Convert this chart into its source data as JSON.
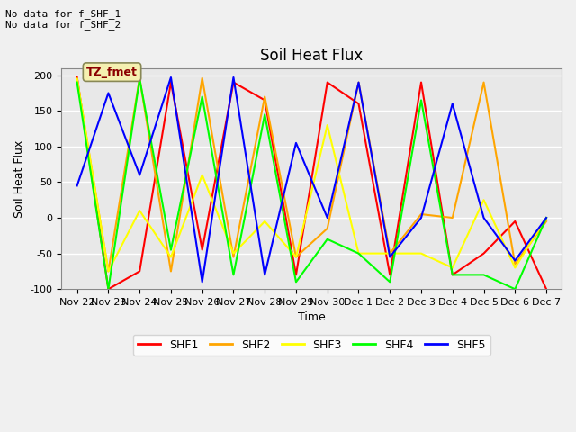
{
  "title": "Soil Heat Flux",
  "xlabel": "Time",
  "ylabel": "Soil Heat Flux",
  "text_top_left": "No data for f_SHF_1\nNo data for f_SHF_2",
  "annotation_box": "TZ_fmet",
  "ylim": [
    -100,
    210
  ],
  "yticks": [
    -100,
    -50,
    0,
    50,
    100,
    150,
    200
  ],
  "xtick_labels": [
    "Nov 22",
    "Nov 23",
    "Nov 24",
    "Nov 25",
    "Nov 26",
    "Nov 27",
    "Nov 28",
    "Nov 29",
    "Nov 30",
    "Dec 1",
    "Dec 2",
    "Dec 3",
    "Dec 4",
    "Dec 5",
    "Dec 6",
    "Dec 7"
  ],
  "series": {
    "SHF1": {
      "color": "red",
      "x": [
        0,
        1,
        2,
        3,
        4,
        5,
        6,
        7,
        8,
        9,
        10,
        11,
        12,
        13,
        14,
        15
      ],
      "y": [
        197,
        -100,
        -75,
        190,
        -45,
        190,
        165,
        -80,
        190,
        160,
        -80,
        190,
        -80,
        -50,
        -5,
        -100
      ]
    },
    "SHF2": {
      "color": "orange",
      "x": [
        0,
        1,
        2,
        3,
        4,
        5,
        6,
        7,
        8,
        9,
        10,
        11,
        12,
        13,
        14,
        15
      ],
      "y": [
        195,
        -75,
        196,
        -75,
        196,
        -55,
        170,
        -55,
        -15,
        190,
        -50,
        5,
        0,
        190,
        -65,
        -5
      ]
    },
    "SHF3": {
      "color": "yellow",
      "x": [
        0,
        1,
        2,
        3,
        4,
        5,
        6,
        7,
        8,
        9,
        10,
        11,
        12,
        13,
        14,
        15
      ],
      "y": [
        195,
        -75,
        10,
        -55,
        60,
        -50,
        -5,
        -55,
        130,
        -50,
        -50,
        -50,
        -70,
        25,
        -70,
        0
      ]
    },
    "SHF4": {
      "color": "lime",
      "x": [
        0,
        1,
        2,
        3,
        4,
        5,
        6,
        7,
        8,
        9,
        10,
        11,
        12,
        13,
        14,
        15
      ],
      "y": [
        190,
        -100,
        195,
        -45,
        170,
        -80,
        145,
        -90,
        -30,
        -50,
        -90,
        165,
        -80,
        -80,
        -100,
        0
      ]
    },
    "SHF5": {
      "color": "blue",
      "x": [
        0,
        1,
        2,
        3,
        4,
        5,
        6,
        7,
        8,
        9,
        10,
        11,
        12,
        13,
        14,
        15
      ],
      "y": [
        45,
        175,
        60,
        197,
        -90,
        197,
        -80,
        105,
        0,
        190,
        -55,
        0,
        160,
        0,
        -60,
        0
      ]
    }
  },
  "legend_entries": [
    "SHF1",
    "SHF2",
    "SHF3",
    "SHF4",
    "SHF5"
  ],
  "legend_colors": [
    "red",
    "orange",
    "yellow",
    "lime",
    "blue"
  ],
  "plot_bg": "#e8e8e8",
  "fig_bg": "#f0f0f0",
  "grid_color": "#ffffff",
  "linewidth": 1.5,
  "title_fontsize": 12,
  "axis_fontsize": 9,
  "tick_fontsize": 8
}
